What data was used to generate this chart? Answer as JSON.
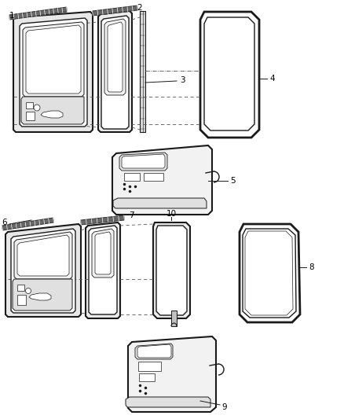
{
  "background_color": "#ffffff",
  "line_color": "#1a1a1a",
  "label_color": "#000000",
  "fig_width": 4.38,
  "fig_height": 5.33,
  "dpi": 100
}
